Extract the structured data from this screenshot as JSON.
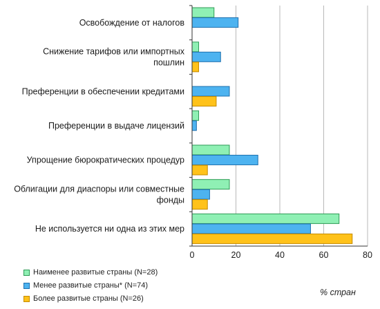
{
  "chart_data": {
    "type": "bar",
    "orientation": "horizontal",
    "categories": [
      [
        "Освобождение от налогов"
      ],
      [
        "Снижение тарифов или импортных",
        "пошлин"
      ],
      [
        "Преференции в обеспечении кредитами"
      ],
      [
        "Преференции в выдаче лицензий"
      ],
      [
        "Упрощение бюрократических процедур"
      ],
      [
        "Облигации для диаспоры или совместные",
        "фонды"
      ],
      [
        "Не используется ни одна из этих мер"
      ]
    ],
    "series": [
      {
        "name": "Наименее развитые страны (N=28)",
        "color": "#8ff0b4",
        "border": "#2e9a55",
        "values": [
          10,
          3,
          0,
          3,
          17,
          17,
          67
        ]
      },
      {
        "name": "Менее  развитые страны* (N=74)",
        "color": "#4db3f0",
        "border": "#1d6fae",
        "values": [
          21,
          13,
          17,
          2,
          30,
          8,
          54
        ]
      },
      {
        "name": "Более развитые страны (N=26)",
        "color": "#ffc21a",
        "border": "#c48a00",
        "values": [
          0,
          3,
          11,
          0,
          7,
          7,
          73
        ]
      }
    ],
    "xlim": [
      0,
      80
    ],
    "xticks": [
      0,
      20,
      40,
      60,
      80
    ],
    "xlabel": "% стран",
    "grid": true,
    "legend_position": "bottom-left"
  }
}
